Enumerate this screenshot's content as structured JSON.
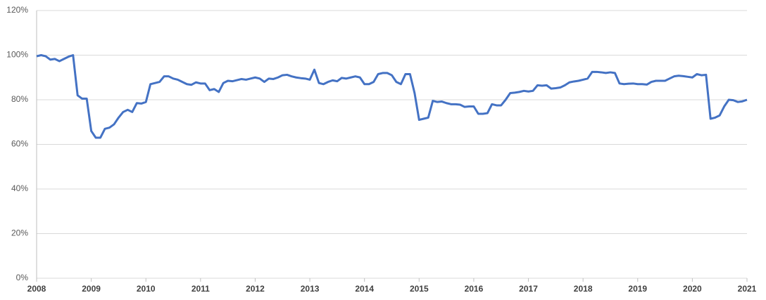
{
  "chart_data": {
    "type": "line",
    "color": "#4472c4",
    "grid": true,
    "xlim": [
      2008,
      2021
    ],
    "xticks": [
      2008,
      2009,
      2010,
      2011,
      2012,
      2013,
      2014,
      2015,
      2016,
      2017,
      2018,
      2019,
      2020,
      2021
    ],
    "ylim": [
      0,
      120
    ],
    "yticks": [
      {
        "value": 0,
        "label": "0%"
      },
      {
        "value": 20,
        "label": "20%"
      },
      {
        "value": 40,
        "label": "40%"
      },
      {
        "value": 60,
        "label": "60%"
      },
      {
        "value": 80,
        "label": "80%"
      },
      {
        "value": 100,
        "label": "100%"
      },
      {
        "value": 120,
        "label": "120%"
      }
    ],
    "x": [
      2008,
      2008.083,
      2008.167,
      2008.25,
      2008.333,
      2008.417,
      2008.5,
      2008.583,
      2008.667,
      2008.75,
      2008.833,
      2008.917,
      2009,
      2009.083,
      2009.167,
      2009.25,
      2009.333,
      2009.417,
      2009.5,
      2009.583,
      2009.667,
      2009.75,
      2009.833,
      2009.917,
      2010,
      2010.083,
      2010.167,
      2010.25,
      2010.333,
      2010.417,
      2010.5,
      2010.583,
      2010.667,
      2010.75,
      2010.833,
      2010.917,
      2011,
      2011.083,
      2011.167,
      2011.25,
      2011.333,
      2011.417,
      2011.5,
      2011.583,
      2011.667,
      2011.75,
      2011.833,
      2011.917,
      2012,
      2012.083,
      2012.167,
      2012.25,
      2012.333,
      2012.417,
      2012.5,
      2012.583,
      2012.667,
      2012.75,
      2012.833,
      2012.917,
      2013,
      2013.083,
      2013.167,
      2013.25,
      2013.333,
      2013.417,
      2013.5,
      2013.583,
      2013.667,
      2013.75,
      2013.833,
      2013.917,
      2014,
      2014.083,
      2014.167,
      2014.25,
      2014.333,
      2014.417,
      2014.5,
      2014.583,
      2014.667,
      2014.75,
      2014.833,
      2014.917,
      2015,
      2015.083,
      2015.167,
      2015.25,
      2015.333,
      2015.417,
      2015.5,
      2015.583,
      2015.667,
      2015.75,
      2015.833,
      2015.917,
      2016,
      2016.083,
      2016.167,
      2016.25,
      2016.333,
      2016.417,
      2016.5,
      2016.583,
      2016.667,
      2016.75,
      2016.833,
      2016.917,
      2017,
      2017.083,
      2017.167,
      2017.25,
      2017.333,
      2017.417,
      2017.5,
      2017.583,
      2017.667,
      2017.75,
      2017.833,
      2017.917,
      2018,
      2018.083,
      2018.167,
      2018.25,
      2018.333,
      2018.417,
      2018.5,
      2018.583,
      2018.667,
      2018.75,
      2018.833,
      2018.917,
      2019,
      2019.083,
      2019.167,
      2019.25,
      2019.333,
      2019.417,
      2019.5,
      2019.583,
      2019.667,
      2019.75,
      2019.833,
      2019.917,
      2020,
      2020.083,
      2020.167,
      2020.25,
      2020.333,
      2020.417,
      2020.5,
      2020.583,
      2020.667,
      2020.75,
      2020.833,
      2020.917,
      2021
    ],
    "values": [
      99.5,
      100,
      99.5,
      98,
      98.3,
      97.3,
      98.3,
      99.3,
      100,
      82,
      80.5,
      80.5,
      66,
      63,
      63,
      67,
      67.5,
      69,
      72,
      74.5,
      75.5,
      74.5,
      78.5,
      78.3,
      79,
      87,
      87.5,
      88,
      90.5,
      90.5,
      89.5,
      89,
      88,
      87,
      86.7,
      87.8,
      87.3,
      87.3,
      84.3,
      84.8,
      83.5,
      87.5,
      88.5,
      88.3,
      88.8,
      89.3,
      89,
      89.5,
      90,
      89.5,
      88,
      89.5,
      89.3,
      90,
      91,
      91.2,
      90.5,
      90,
      89.7,
      89.5,
      89,
      93.5,
      87.5,
      87,
      88,
      88.7,
      88.3,
      89.8,
      89.5,
      90,
      90.5,
      90,
      87,
      87,
      88,
      91.5,
      92,
      92,
      91,
      88,
      87,
      91.5,
      91.5,
      83,
      71,
      71.5,
      72,
      79.5,
      79,
      79.2,
      78.5,
      78,
      78,
      77.8,
      76.8,
      77,
      77,
      73.7,
      73.7,
      74,
      78,
      77.5,
      77.5,
      80,
      83,
      83.2,
      83.5,
      84,
      83.7,
      84,
      86.5,
      86.3,
      86.5,
      85,
      85.2,
      85.5,
      86.5,
      87.8,
      88.2,
      88.5,
      89,
      89.5,
      92.5,
      92.5,
      92.3,
      92,
      92.3,
      92,
      87.3,
      87,
      87.2,
      87.3,
      87,
      87,
      86.8,
      88,
      88.5,
      88.5,
      88.5,
      89.5,
      90.5,
      90.8,
      90.6,
      90.3,
      90,
      91.5,
      91,
      91.2,
      71.5,
      72,
      73,
      77,
      80,
      79.8,
      79,
      79.3,
      80
    ]
  }
}
